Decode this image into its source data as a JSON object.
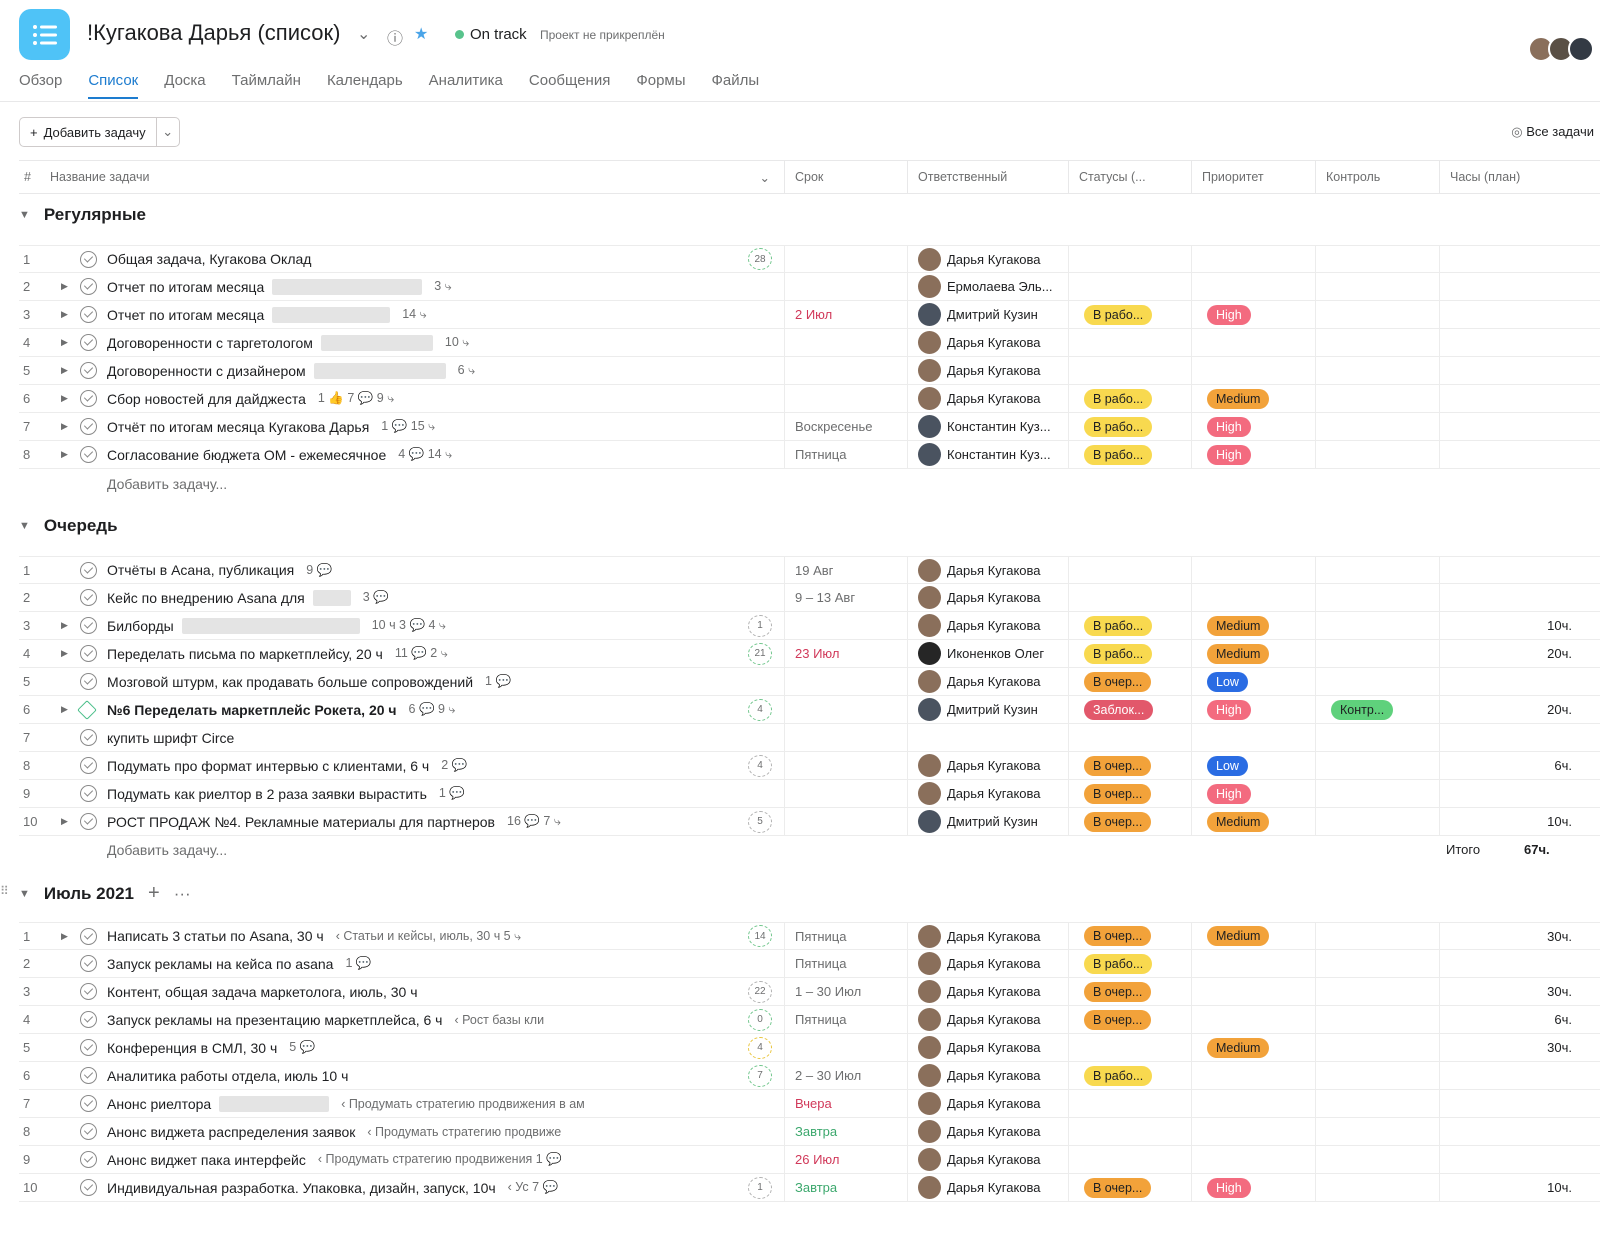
{
  "header": {
    "title": "!Кугакова Дарья (список)",
    "status": "On track",
    "pin_note": "Проект не прикреплён",
    "status_color": "#58c38c"
  },
  "tabs": [
    "Обзор",
    "Список",
    "Доска",
    "Таймлайн",
    "Календарь",
    "Аналитика",
    "Сообщения",
    "Формы",
    "Файлы"
  ],
  "active_tab": "Список",
  "toolbar": {
    "add_task": "Добавить задачу",
    "all_tasks": "Все задачи"
  },
  "columns": {
    "num": "#",
    "name": "Название задачи",
    "due": "Срок",
    "assignee": "Ответственный",
    "status": "Статусы (...",
    "priority": "Приоритет",
    "control": "Контроль",
    "hours": "Часы (план)"
  },
  "add_task_inline": "Добавить задачу...",
  "sections": [
    {
      "title": "Регулярные",
      "rows": [
        {
          "n": "1",
          "name": "Общая задача, Кугакова Оклад",
          "meta": "",
          "sub": "28",
          "due": "",
          "assignee": "Дарья Кугакова",
          "status": "",
          "priority": "",
          "control": "",
          "hours": ""
        },
        {
          "n": "2",
          "name": "Отчет по итогам месяца",
          "meta": "3 ⤷",
          "sub": "",
          "due": "",
          "assignee": "Ермолаева Эль...",
          "status": "",
          "priority": "",
          "control": "",
          "hours": ""
        },
        {
          "n": "3",
          "name": "Отчет по итогам месяца",
          "meta": "14 ⤷",
          "sub": "",
          "due": "2 Июл",
          "assignee": "Дмитрий Кузин",
          "status": "В рабо...",
          "priority": "High",
          "control": "",
          "hours": ""
        },
        {
          "n": "4",
          "name": "Договоренности с таргетологом",
          "meta": "10 ⤷",
          "sub": "",
          "due": "",
          "assignee": "Дарья Кугакова",
          "status": "",
          "priority": "",
          "control": "",
          "hours": ""
        },
        {
          "n": "5",
          "name": "Договоренности с дизайнером",
          "meta": "6 ⤷",
          "sub": "",
          "due": "",
          "assignee": "Дарья Кугакова",
          "status": "",
          "priority": "",
          "control": "",
          "hours": ""
        },
        {
          "n": "6",
          "name": "Сбор новостей для дайджеста",
          "meta": "1 👍  7 💬  9 ⤷",
          "sub": "",
          "due": "",
          "assignee": "Дарья Кугакова",
          "status": "В рабо...",
          "priority": "Medium",
          "control": "",
          "hours": ""
        },
        {
          "n": "7",
          "name": "Отчёт по итогам месяца Кугакова Дарья",
          "meta": "1 💬  15 ⤷",
          "sub": "",
          "due": "Воскресенье",
          "assignee": "Константин Куз...",
          "status": "В рабо...",
          "priority": "High",
          "control": "",
          "hours": ""
        },
        {
          "n": "8",
          "name": "Согласование бюджета ОМ - ежемесячное",
          "meta": "4 💬  14 ⤷",
          "sub": "",
          "due": "Пятница",
          "assignee": "Константин Куз...",
          "status": "В рабо...",
          "priority": "High",
          "control": "",
          "hours": ""
        }
      ]
    },
    {
      "title": "Очередь",
      "total_label": "Итого",
      "total_value": "67ч.",
      "rows": [
        {
          "n": "1",
          "name": "Отчёты в Асана, публикация",
          "meta": "9 💬",
          "sub": "",
          "due": "19 Авг",
          "assignee": "Дарья Кугакова",
          "status": "",
          "priority": "",
          "control": "",
          "hours": ""
        },
        {
          "n": "2",
          "name": "Кейс по внедрению Asana для",
          "meta": "3 💬",
          "sub": "",
          "due": "9 – 13 Авг",
          "assignee": "Дарья Кугакова",
          "status": "",
          "priority": "",
          "control": "",
          "hours": ""
        },
        {
          "n": "3",
          "name": "Билборды",
          "meta": "10 ч   3 💬  4 ⤷",
          "sub": "1",
          "due": "",
          "assignee": "Дарья Кугакова",
          "status": "В рабо...",
          "priority": "Medium",
          "control": "",
          "hours": "10ч."
        },
        {
          "n": "4",
          "name": "Переделать письма по маркетплейсу, 20 ч",
          "meta": "11 💬  2 ⤷",
          "sub": "21",
          "due": "23 Июл",
          "assignee": "Иконенков Олег",
          "status": "В рабо...",
          "priority": "Medium",
          "control": "",
          "hours": "20ч."
        },
        {
          "n": "5",
          "name": "Мозговой штурм, как продавать больше сопровождений",
          "meta": "1 💬",
          "sub": "",
          "due": "",
          "assignee": "Дарья Кугакова",
          "status": "В очер...",
          "priority": "Low",
          "control": "",
          "hours": ""
        },
        {
          "n": "6",
          "name": "№6 Переделать маркетплейс Рокета, 20 ч",
          "meta": "6 💬  9 ⤷",
          "sub": "4",
          "due": "",
          "assignee": "Дмитрий Кузин",
          "status": "Заблок...",
          "priority": "High",
          "control": "Контр...",
          "hours": "20ч."
        },
        {
          "n": "7",
          "name": "купить шрифт Circe",
          "meta": "",
          "sub": "",
          "due": "",
          "assignee": "",
          "status": "",
          "priority": "",
          "control": "",
          "hours": ""
        },
        {
          "n": "8",
          "name": "Подумать про формат интервью с клиентами, 6 ч",
          "meta": "2 💬",
          "sub": "4",
          "due": "",
          "assignee": "Дарья Кугакова",
          "status": "В очер...",
          "priority": "Low",
          "control": "",
          "hours": "6ч."
        },
        {
          "n": "9",
          "name": "Подумать как риелтор в 2 раза заявки вырастить",
          "meta": "1 💬",
          "sub": "",
          "due": "",
          "assignee": "Дарья Кугакова",
          "status": "В очер...",
          "priority": "High",
          "control": "",
          "hours": ""
        },
        {
          "n": "10",
          "name": "РОСТ ПРОДАЖ №4. Рекламные материалы для партнеров",
          "meta": "16 💬  7 ⤷",
          "sub": "5",
          "due": "",
          "assignee": "Дмитрий Кузин",
          "status": "В очер...",
          "priority": "Medium",
          "control": "",
          "hours": "10ч."
        }
      ]
    },
    {
      "title": "Июль 2021",
      "rows": [
        {
          "n": "1",
          "name": "Написать 3 статьи по Asana, 30 ч",
          "meta": "‹ Статьи и кейсы, июль, 30 ч   5 ⤷",
          "sub": "14",
          "due": "Пятница",
          "assignee": "Дарья Кугакова",
          "status": "В очер...",
          "priority": "Medium",
          "control": "",
          "hours": "30ч."
        },
        {
          "n": "2",
          "name": "Запуск рекламы на кейса по asana",
          "meta": "1 💬",
          "sub": "",
          "due": "Пятница",
          "assignee": "Дарья Кугакова",
          "status": "В рабо...",
          "priority": "",
          "control": "",
          "hours": ""
        },
        {
          "n": "3",
          "name": "Контент, общая задача маркетолога, июль, 30 ч",
          "meta": "",
          "sub": "22",
          "due": "1 – 30 Июл",
          "assignee": "Дарья Кугакова",
          "status": "В очер...",
          "priority": "",
          "control": "",
          "hours": "30ч."
        },
        {
          "n": "4",
          "name": "Запуск рекламы на презентацию маркетплейса, 6 ч",
          "meta": "‹ Рост базы кли",
          "sub": "0",
          "due": "Пятница",
          "assignee": "Дарья Кугакова",
          "status": "В очер...",
          "priority": "",
          "control": "",
          "hours": "6ч."
        },
        {
          "n": "5",
          "name": "Конференция в СМЛ, 30 ч",
          "meta": "5 💬",
          "sub": "4",
          "due": "",
          "assignee": "Дарья Кугакова",
          "status": "",
          "priority": "Medium",
          "control": "",
          "hours": "30ч."
        },
        {
          "n": "6",
          "name": "Аналитика работы отдела, июль 10 ч",
          "meta": "",
          "sub": "7",
          "due": "2 – 30 Июл",
          "assignee": "Дарья Кугакова",
          "status": "В рабо...",
          "priority": "",
          "control": "",
          "hours": ""
        },
        {
          "n": "7",
          "name": "Анонс риелтора",
          "meta": "‹ Продумать стратегию продвижения в ам",
          "sub": "",
          "due": "Вчера",
          "assignee": "Дарья Кугакова",
          "status": "",
          "priority": "",
          "control": "",
          "hours": ""
        },
        {
          "n": "8",
          "name": "Анонс виджета распределения заявок",
          "meta": "‹ Продумать стратегию продвиже",
          "sub": "",
          "due": "Завтра",
          "assignee": "Дарья Кугакова",
          "status": "",
          "priority": "",
          "control": "",
          "hours": ""
        },
        {
          "n": "9",
          "name": "Анонс виджет пака интерфейс",
          "meta": "‹ Продумать стратегию продвижения   1 💬",
          "sub": "",
          "due": "26 Июл",
          "assignee": "Дарья Кугакова",
          "status": "",
          "priority": "",
          "control": "",
          "hours": ""
        },
        {
          "n": "10",
          "name": "Индивидуальная разработка. Упаковка, дизайн, запуск, 10ч",
          "meta": "‹ Ус   7 💬",
          "sub": "1",
          "due": "Завтра",
          "assignee": "Дарья Кугакова",
          "status": "В очер...",
          "priority": "High",
          "control": "",
          "hours": "10ч."
        }
      ]
    }
  ]
}
